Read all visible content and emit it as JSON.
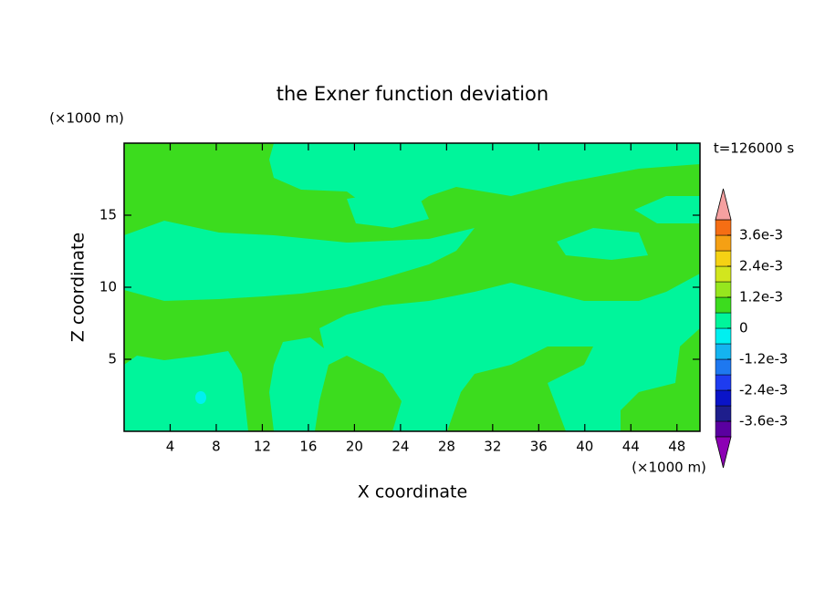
{
  "chart_data": {
    "type": "contour",
    "title": "the Exner function deviation",
    "x_label": "X coordinate",
    "y_label": "Z coordinate",
    "x_unit": "(×1000 m)",
    "y_unit": "(×1000 m)",
    "time_label": "t=126000 s",
    "xlim": [
      0,
      50
    ],
    "ylim": [
      0,
      20
    ],
    "xticks": [
      4,
      8,
      12,
      16,
      20,
      24,
      28,
      32,
      36,
      40,
      44,
      48
    ],
    "yticks": [
      5,
      10,
      15
    ],
    "levels": [
      -0.0042,
      -0.0036,
      -0.003,
      -0.0024,
      -0.0018,
      -0.0012,
      -0.0006,
      0,
      0.0006,
      0.0012,
      0.0018,
      0.0024,
      0.003,
      0.0036,
      0.0042
    ],
    "colors": [
      "#5a00a0",
      "#1e1e8c",
      "#0a14c8",
      "#1e3cf0",
      "#1e78f0",
      "#14b4f0",
      "#00f0f0",
      "#00f59b",
      "#3cdc1e",
      "#96e61e",
      "#d2e61e",
      "#f5d214",
      "#f5a014",
      "#f56e14"
    ],
    "top_color": "#e8141e",
    "over_color": "#f5a0a0",
    "under_color": "#8c00b4",
    "colorbar_ticks": [
      {
        "value": 0.0036,
        "label": "3.6e-3"
      },
      {
        "value": 0.0024,
        "label": "2.4e-3"
      },
      {
        "value": 0.0012,
        "label": "1.2e-3"
      },
      0,
      {
        "value": -0.0012,
        "label": "-1.2e-3"
      },
      {
        "value": -0.0024,
        "label": "-2.4e-3"
      },
      {
        "value": -0.0036,
        "label": "-3.6e-3"
      }
    ]
  }
}
